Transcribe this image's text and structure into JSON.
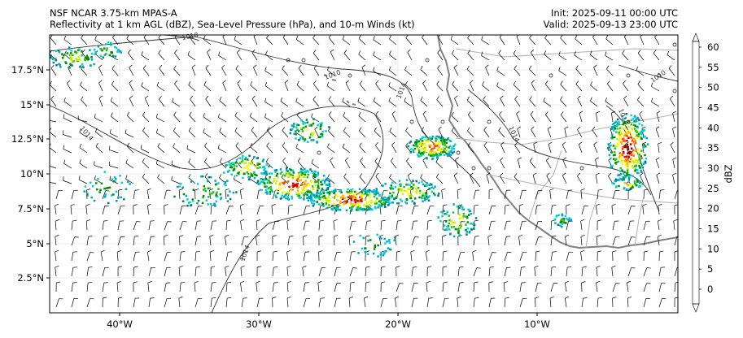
{
  "header": {
    "title_line1": "NSF NCAR 3.75-km MPAS-A",
    "title_line2": "Reflectivity at 1 km AGL (dBZ), Sea-Level Pressure (hPa), and 10-m Winds (kt)",
    "init": "Init: 2025-09-11 00:00 UTC",
    "valid": "Valid: 2025-09-13 23:00 UTC"
  },
  "map": {
    "lon_labels": [
      "40°W",
      "30°W",
      "20°W",
      "10°W"
    ],
    "lat_labels": [
      "17.5°N",
      "15°N",
      "12.5°N",
      "10°N",
      "7.5°N",
      "5°N",
      "2.5°N"
    ],
    "isobar_labels": [
      "1014",
      "1014",
      "1014",
      "1010",
      "1014",
      "1014",
      "1018",
      "1010"
    ]
  },
  "colorbar": {
    "label": "dBZ",
    "ticks": [
      "60",
      "55",
      "50",
      "45",
      "40",
      "35",
      "30",
      "25",
      "20",
      "15",
      "10",
      "5",
      "0"
    ],
    "colors": [
      "#007a7a",
      "#00a0c8",
      "#00d2d2",
      "#008c00",
      "#20c020",
      "#c8f000",
      "#ffff00",
      "#ffb400",
      "#ff5000",
      "#dc0000",
      "#8b0000",
      "#ff00ff",
      "#fff0f0"
    ]
  },
  "legend_colors": {
    "coast": "#808080",
    "isobar": "#333333",
    "border": "#b0b0b0",
    "grid": "#dddddd"
  }
}
